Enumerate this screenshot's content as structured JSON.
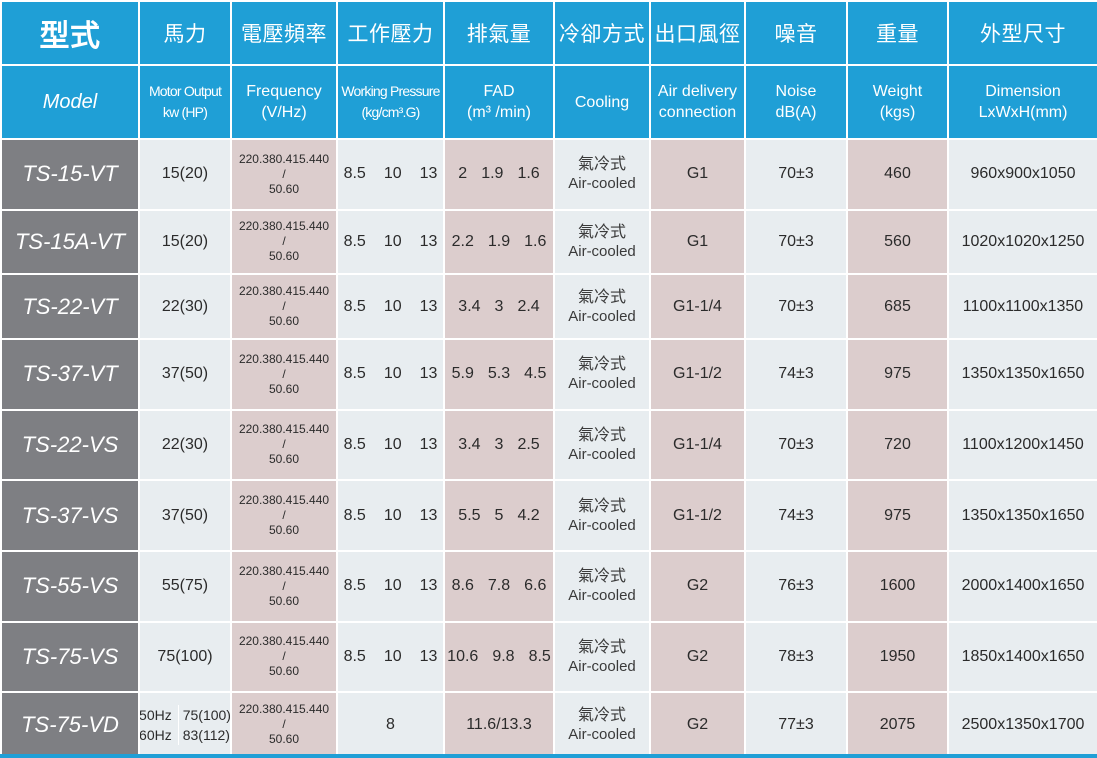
{
  "headers": {
    "model": {
      "zh": "型式",
      "en": "Model"
    },
    "motor_output": {
      "zh": "馬力",
      "en1": "Motor Output",
      "en2": "kw (HP)"
    },
    "frequency": {
      "zh": "電壓頻率",
      "en1": "Frequency",
      "en2": "(V/Hz)"
    },
    "working_pressure": {
      "zh": "工作壓力",
      "en1": "Working Pressure",
      "en2": "(kg/cm³.G)"
    },
    "fad": {
      "zh": "排氣量",
      "en1": "FAD",
      "en2": "(m³ /min)"
    },
    "cooling": {
      "zh": "冷卻方式",
      "en1": "Cooling"
    },
    "air_delivery": {
      "zh": "出口風徑",
      "en1": "Air delivery",
      "en2": "connection"
    },
    "noise": {
      "zh": "噪音",
      "en1": "Noise",
      "en2": "dB(A)"
    },
    "weight": {
      "zh": "重量",
      "en1": "Weight",
      "en2": "(kgs)"
    },
    "dimension": {
      "zh": "外型尺寸",
      "en1": "Dimension",
      "en2": "LxWxH(mm)"
    }
  },
  "freq_text": {
    "line1": "220.380.415.440",
    "line2": "/",
    "line3": "50.60"
  },
  "cooling_text": {
    "zh": "氣冷式",
    "en": "Air-cooled"
  },
  "rows": [
    {
      "model": "TS-15-VT",
      "hp": "15(20)",
      "pressure": [
        "8.5",
        "10",
        "13"
      ],
      "fad": [
        "2",
        "1.9",
        "1.6"
      ],
      "conn": "G1",
      "noise": "70±3",
      "weight": "460",
      "dim": "960x900x1050"
    },
    {
      "model": "TS-15A-VT",
      "hp": "15(20)",
      "pressure": [
        "8.5",
        "10",
        "13"
      ],
      "fad": [
        "2.2",
        "1.9",
        "1.6"
      ],
      "conn": "G1",
      "noise": "70±3",
      "weight": "560",
      "dim": "1020x1020x1250"
    },
    {
      "model": "TS-22-VT",
      "hp": "22(30)",
      "pressure": [
        "8.5",
        "10",
        "13"
      ],
      "fad": [
        "3.4",
        "3",
        "2.4"
      ],
      "conn": "G1-1/4",
      "noise": "70±3",
      "weight": "685",
      "dim": "1100x1100x1350"
    },
    {
      "model": "TS-37-VT",
      "hp": "37(50)",
      "pressure": [
        "8.5",
        "10",
        "13"
      ],
      "fad": [
        "5.9",
        "5.3",
        "4.5"
      ],
      "conn": "G1-1/2",
      "noise": "74±3",
      "weight": "975",
      "dim": "1350x1350x1650"
    },
    {
      "model": "TS-22-VS",
      "hp": "22(30)",
      "pressure": [
        "8.5",
        "10",
        "13"
      ],
      "fad": [
        "3.4",
        "3",
        "2.5"
      ],
      "conn": "G1-1/4",
      "noise": "70±3",
      "weight": "720",
      "dim": "1100x1200x1450"
    },
    {
      "model": "TS-37-VS",
      "hp": "37(50)",
      "pressure": [
        "8.5",
        "10",
        "13"
      ],
      "fad": [
        "5.5",
        "5",
        "4.2"
      ],
      "conn": "G1-1/2",
      "noise": "74±3",
      "weight": "975",
      "dim": "1350x1350x1650"
    },
    {
      "model": "TS-55-VS",
      "hp": "55(75)",
      "pressure": [
        "8.5",
        "10",
        "13"
      ],
      "fad": [
        "8.6",
        "7.8",
        "6.6"
      ],
      "conn": "G2",
      "noise": "76±3",
      "weight": "1600",
      "dim": "2000x1400x1650"
    },
    {
      "model": "TS-75-VS",
      "hp": "75(100)",
      "pressure": [
        "8.5",
        "10",
        "13"
      ],
      "fad": [
        "10.6",
        "9.8",
        "8.5"
      ],
      "conn": "G2",
      "noise": "78±3",
      "weight": "1950",
      "dim": "1850x1400x1650"
    }
  ],
  "last_row": {
    "model": "TS-75-VD",
    "hp": {
      "hz1": "50Hz",
      "hp1": "75(100)",
      "hz2": "60Hz",
      "hp2": "83(112)"
    },
    "pressure": "8",
    "fad": "11.6/13.3",
    "conn": "G2",
    "noise": "77±3",
    "weight": "2075",
    "dim": "2500x1350x1700"
  },
  "colors": {
    "header_blue": "#1f9fd6",
    "model_gray": "#7e7f83",
    "cell_light": "#e8edf0",
    "cell_pink": "#dccdcd"
  }
}
